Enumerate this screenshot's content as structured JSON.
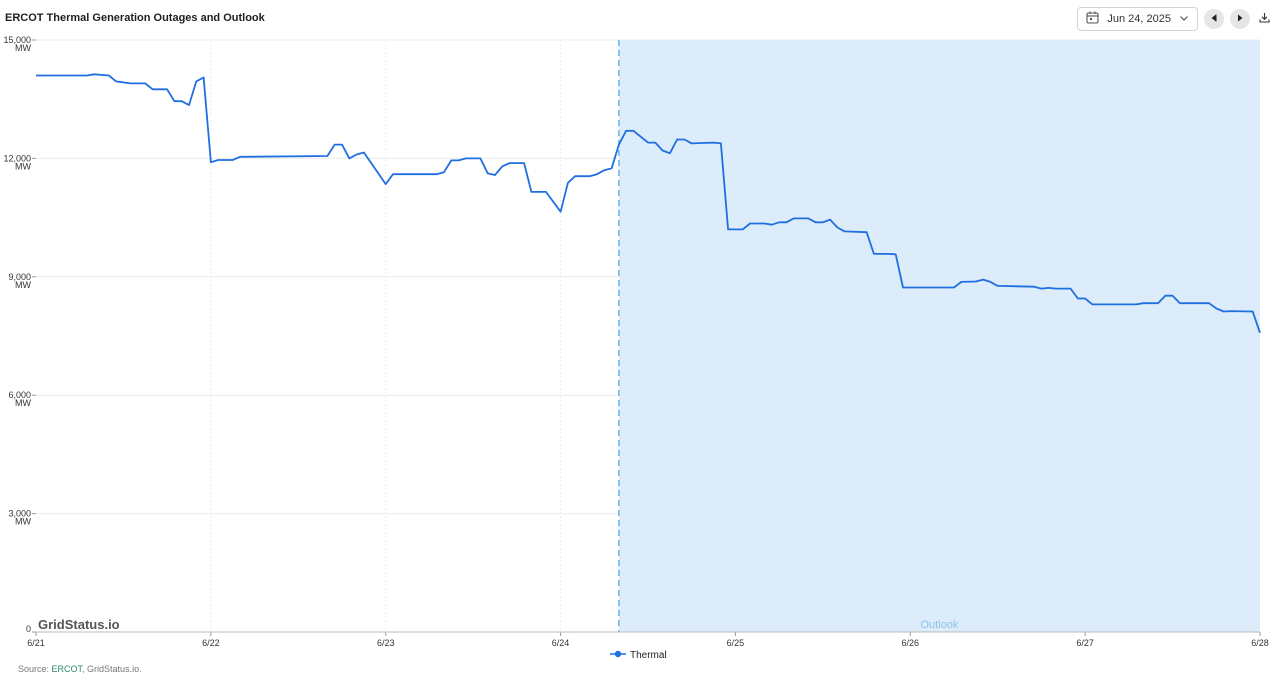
{
  "title": "ERCOT Thermal Generation Outages and Outlook",
  "date_picker": {
    "value": "Jun 24, 2025",
    "icon": "calendar-icon"
  },
  "buttons": {
    "prev": "previous-day",
    "next": "next-day",
    "download": "download"
  },
  "watermark": "GridStatus.io",
  "outlook_label": "Outlook",
  "legend": [
    "Thermal"
  ],
  "source": {
    "prefix": "Source: ",
    "link": "ERCOT",
    "suffix": ", GridStatus.io."
  },
  "colors": {
    "line": "#1f6fe0",
    "outlook_fill": "#dcecfa",
    "outlook_border": "#66b6e0",
    "grid": "#ececec"
  },
  "chart_data": {
    "type": "line",
    "title": "ERCOT Thermal Generation Outages and Outlook",
    "ylabel": "",
    "xlabel": "",
    "x_tick_labels": [
      "6/21",
      "6/22",
      "6/23",
      "6/24",
      "6/25",
      "6/26",
      "6/27",
      "6/28"
    ],
    "y_tick_values": [
      0,
      3000,
      6000,
      9000,
      12000,
      15000
    ],
    "y_tick_labels": [
      "0",
      "3,000",
      "6,000",
      "9,000",
      "12,000",
      "15,000"
    ],
    "y_unit": "MW",
    "xlim": [
      "2025-06-21T00:00",
      "2025-06-28T00:00"
    ],
    "ylim": [
      0,
      15000
    ],
    "outlook_start": "2025-06-24T08:00",
    "grid": true,
    "legend_position": "bottom",
    "series": [
      {
        "name": "Thermal",
        "points": [
          [
            "2025-06-21T00:00",
            14100
          ],
          [
            "2025-06-21T07:00",
            14100
          ],
          [
            "2025-06-21T08:00",
            14130
          ],
          [
            "2025-06-21T10:00",
            14100
          ],
          [
            "2025-06-21T11:00",
            13950
          ],
          [
            "2025-06-21T13:00",
            13900
          ],
          [
            "2025-06-21T15:00",
            13900
          ],
          [
            "2025-06-21T16:00",
            13750
          ],
          [
            "2025-06-21T17:00",
            13750
          ],
          [
            "2025-06-21T18:00",
            13750
          ],
          [
            "2025-06-21T19:00",
            13450
          ],
          [
            "2025-06-21T20:00",
            13450
          ],
          [
            "2025-06-21T21:00",
            13350
          ],
          [
            "2025-06-21T22:00",
            13950
          ],
          [
            "2025-06-21T23:00",
            14050
          ],
          [
            "2025-06-22T00:00",
            11900
          ],
          [
            "2025-06-22T01:00",
            11960
          ],
          [
            "2025-06-22T03:00",
            11960
          ],
          [
            "2025-06-22T04:00",
            12040
          ],
          [
            "2025-06-22T16:00",
            12060
          ],
          [
            "2025-06-22T17:00",
            12350
          ],
          [
            "2025-06-22T18:00",
            12350
          ],
          [
            "2025-06-22T19:00",
            12000
          ],
          [
            "2025-06-22T20:00",
            12100
          ],
          [
            "2025-06-22T21:00",
            12150
          ],
          [
            "2025-06-23T00:00",
            11350
          ],
          [
            "2025-06-23T01:00",
            11600
          ],
          [
            "2025-06-23T07:00",
            11600
          ],
          [
            "2025-06-23T08:00",
            11650
          ],
          [
            "2025-06-23T09:00",
            11950
          ],
          [
            "2025-06-23T10:00",
            11950
          ],
          [
            "2025-06-23T11:00",
            12000
          ],
          [
            "2025-06-23T13:00",
            12000
          ],
          [
            "2025-06-23T14:00",
            11620
          ],
          [
            "2025-06-23T15:00",
            11580
          ],
          [
            "2025-06-23T16:00",
            11800
          ],
          [
            "2025-06-23T17:00",
            11880
          ],
          [
            "2025-06-23T19:00",
            11880
          ],
          [
            "2025-06-23T20:00",
            11150
          ],
          [
            "2025-06-23T22:00",
            11150
          ],
          [
            "2025-06-23T23:00",
            10900
          ],
          [
            "2025-06-24T00:00",
            10650
          ],
          [
            "2025-06-24T01:00",
            11380
          ],
          [
            "2025-06-24T02:00",
            11550
          ],
          [
            "2025-06-24T04:00",
            11550
          ],
          [
            "2025-06-24T05:00",
            11600
          ],
          [
            "2025-06-24T06:00",
            11700
          ],
          [
            "2025-06-24T07:00",
            11750
          ],
          [
            "2025-06-24T08:00",
            12350
          ],
          [
            "2025-06-24T09:00",
            12700
          ],
          [
            "2025-06-24T10:00",
            12700
          ],
          [
            "2025-06-24T11:00",
            12550
          ],
          [
            "2025-06-24T12:00",
            12400
          ],
          [
            "2025-06-24T13:00",
            12400
          ],
          [
            "2025-06-24T14:00",
            12200
          ],
          [
            "2025-06-24T15:00",
            12130
          ],
          [
            "2025-06-24T16:00",
            12480
          ],
          [
            "2025-06-24T17:00",
            12480
          ],
          [
            "2025-06-24T18:00",
            12380
          ],
          [
            "2025-06-24T21:00",
            12400
          ],
          [
            "2025-06-24T22:00",
            12380
          ],
          [
            "2025-06-24T23:00",
            10200
          ],
          [
            "2025-06-25T00:00",
            10200
          ],
          [
            "2025-06-25T01:00",
            10200
          ],
          [
            "2025-06-25T02:00",
            10350
          ],
          [
            "2025-06-25T03:00",
            10350
          ],
          [
            "2025-06-25T04:00",
            10350
          ],
          [
            "2025-06-25T05:00",
            10320
          ],
          [
            "2025-06-25T06:00",
            10380
          ],
          [
            "2025-06-25T07:00",
            10380
          ],
          [
            "2025-06-25T08:00",
            10480
          ],
          [
            "2025-06-25T09:00",
            10480
          ],
          [
            "2025-06-25T10:00",
            10480
          ],
          [
            "2025-06-25T11:00",
            10380
          ],
          [
            "2025-06-25T12:00",
            10380
          ],
          [
            "2025-06-25T13:00",
            10450
          ],
          [
            "2025-06-25T14:00",
            10250
          ],
          [
            "2025-06-25T15:00",
            10150
          ],
          [
            "2025-06-25T18:00",
            10130
          ],
          [
            "2025-06-25T19:00",
            9580
          ],
          [
            "2025-06-25T21:00",
            9580
          ],
          [
            "2025-06-25T22:00",
            9570
          ],
          [
            "2025-06-25T23:00",
            8730
          ],
          [
            "2025-06-26T00:00",
            8730
          ],
          [
            "2025-06-26T06:00",
            8730
          ],
          [
            "2025-06-26T07:00",
            8870
          ],
          [
            "2025-06-26T09:00",
            8880
          ],
          [
            "2025-06-26T10:00",
            8930
          ],
          [
            "2025-06-26T11:00",
            8870
          ],
          [
            "2025-06-26T12:00",
            8770
          ],
          [
            "2025-06-26T17:00",
            8750
          ],
          [
            "2025-06-26T18:00",
            8700
          ],
          [
            "2025-06-26T19:00",
            8720
          ],
          [
            "2025-06-26T20:00",
            8700
          ],
          [
            "2025-06-26T22:00",
            8700
          ],
          [
            "2025-06-26T23:00",
            8450
          ],
          [
            "2025-06-27T00:00",
            8450
          ],
          [
            "2025-06-27T01:00",
            8300
          ],
          [
            "2025-06-27T07:00",
            8300
          ],
          [
            "2025-06-27T08:00",
            8330
          ],
          [
            "2025-06-27T10:00",
            8330
          ],
          [
            "2025-06-27T11:00",
            8520
          ],
          [
            "2025-06-27T12:00",
            8520
          ],
          [
            "2025-06-27T13:00",
            8330
          ],
          [
            "2025-06-27T17:00",
            8330
          ],
          [
            "2025-06-27T18:00",
            8200
          ],
          [
            "2025-06-27T19:00",
            8120
          ],
          [
            "2025-06-27T20:00",
            8130
          ],
          [
            "2025-06-27T23:00",
            8120
          ],
          [
            "2025-06-28T00:00",
            7580
          ]
        ]
      }
    ]
  }
}
